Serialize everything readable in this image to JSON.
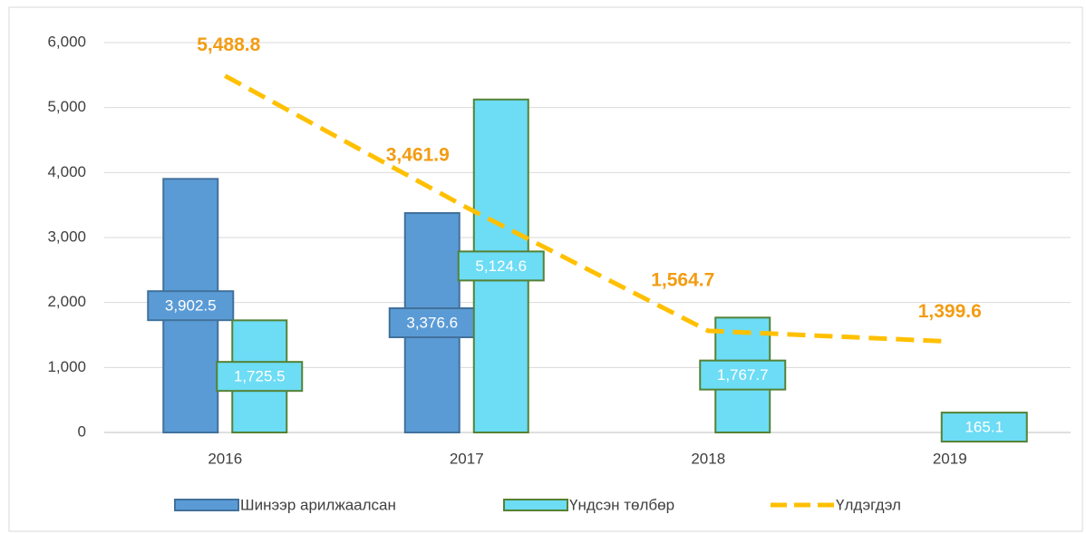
{
  "chart_data": {
    "type": "bar-line",
    "categories": [
      "2016",
      "2017",
      "2018",
      "2019"
    ],
    "series": [
      {
        "name": "Шинээр арилжаалсан",
        "type": "bar",
        "color": "#5b9bd5",
        "border": "#41719c",
        "values": [
          3902.5,
          3376.6,
          null,
          null
        ],
        "value_labels": [
          "3,902.5",
          "3,376.6",
          null,
          null
        ]
      },
      {
        "name": "Үндсэн төлбөр",
        "type": "bar",
        "color": "#6ddcf5",
        "border": "#548235",
        "values": [
          1725.5,
          5124.6,
          1767.7,
          165.1
        ],
        "value_labels": [
          "1,725.5",
          "5,124.6",
          "1,767.7",
          "165.1"
        ]
      },
      {
        "name": "Үлдэгдэл",
        "type": "line",
        "color": "#ffc000",
        "label_color": "#f39c12",
        "values": [
          5488.8,
          3461.9,
          1564.7,
          1399.6
        ],
        "value_labels": [
          "5,488.8",
          "3,461.9",
          "1,564.7",
          "1,399.6"
        ]
      }
    ],
    "ylim": [
      0,
      6000
    ],
    "yticks": [
      0,
      {
        "value": 1000,
        "label": "1,000"
      },
      {
        "value": 2000,
        "label": "2,000"
      },
      {
        "value": 3000,
        "label": "3,000"
      },
      {
        "value": 4000,
        "label": "4,000"
      },
      {
        "value": 5000,
        "label": "5,000"
      },
      {
        "value": 6000,
        "label": "6,000"
      }
    ],
    "grid": true,
    "legend": "bottom"
  }
}
